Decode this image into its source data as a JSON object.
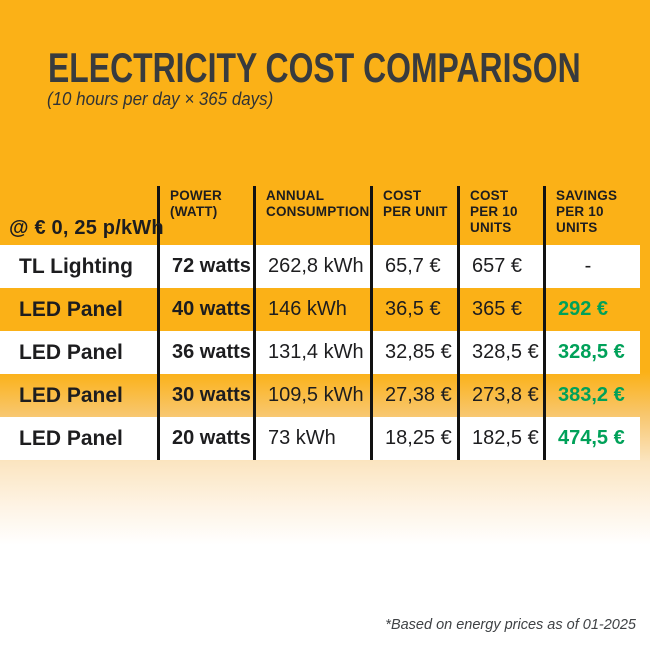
{
  "chart_data": {
    "type": "table",
    "title": "ELECTRICITY COST COMPARISON",
    "subtitle": "(10 hours per day × 365 days)",
    "rate_note": "@ € 0, 25 p/kWh",
    "columns": [
      "POWER (WATT)",
      "ANNUAL CONSUMPTION",
      "COST PER UNIT",
      "COST PER 10 UNITS",
      "SAVINGS PER 10 UNITS"
    ],
    "rows": [
      [
        "TL Lighting",
        "72 watts",
        "262,8 kWh",
        "65,7 €",
        "657 €",
        "-"
      ],
      [
        "LED Panel",
        "40 watts",
        "146 kWh",
        "36,5 €",
        "365 €",
        "292 €"
      ],
      [
        "LED Panel",
        "36 watts",
        "131,4 kWh",
        "32,85 €",
        "328,5 €",
        "328,5 €"
      ],
      [
        "LED Panel",
        "30 watts",
        "109,5 kWh",
        "27,38 €",
        "273,8 €",
        "383,2 €"
      ],
      [
        "LED Panel",
        "20 watts",
        "73 kWh",
        "18,25 €",
        "182,5 €",
        "474,5 €"
      ]
    ],
    "layout": {
      "row_background_alternation": [
        "white",
        "orange",
        "white",
        "orange",
        "white"
      ],
      "savings_column_color": "green"
    }
  },
  "footnote": "*Based on energy prices as of 01-2025",
  "colors": {
    "background_orange": "#FBB117",
    "savings_green": "#00A159",
    "title_dark": "#383B3E",
    "rule_black": "#121212",
    "row_white": "#FFFFFF"
  }
}
